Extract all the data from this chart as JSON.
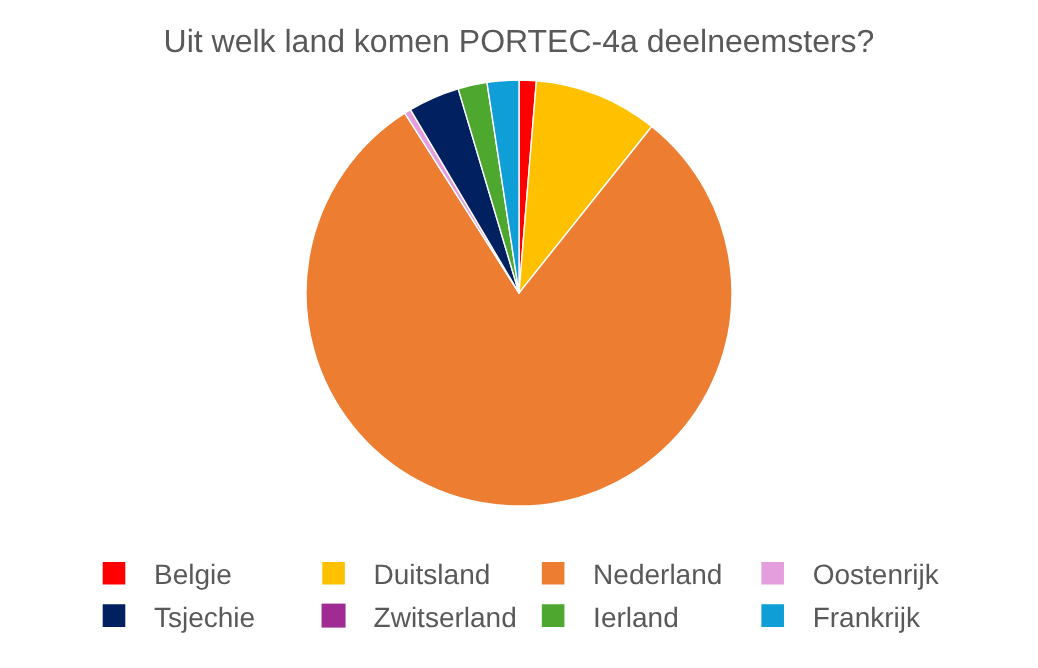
{
  "chart_data": {
    "type": "pie",
    "title": "Uit welk land komen PORTEC-4a deelneemsters?",
    "categories": [
      "Belgie",
      "Duitsland",
      "Nederland",
      "Oostenrijk",
      "Tsjechie",
      "Zwitserland",
      "Ierland",
      "Frankrijk"
    ],
    "values": [
      1.3,
      9.4,
      80.2,
      0.5,
      3.9,
      0,
      2.2,
      2.4
    ],
    "colors": [
      "#ff0000",
      "#ffc000",
      "#ed7d31",
      "#e59edd",
      "#002060",
      "#a02b93",
      "#4ea72e",
      "#0f9ed5"
    ],
    "legend": "bottom"
  }
}
